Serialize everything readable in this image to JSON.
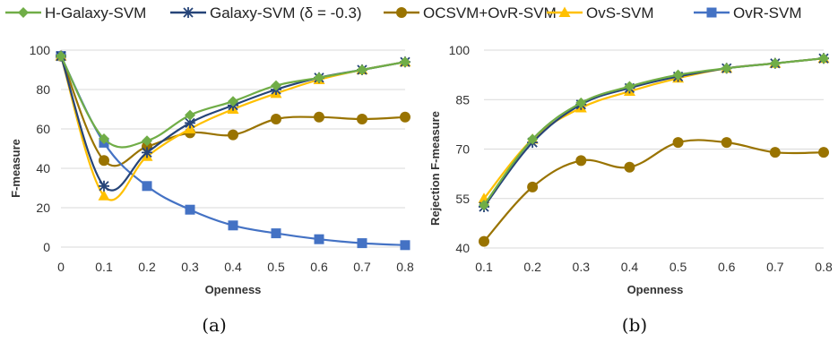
{
  "colors": {
    "H-Galaxy-SVM": "#70ad47",
    "Galaxy-SVM": "#264478",
    "OCSVM+OvR-SVM": "#997300",
    "OvS-SVM": "#ffc000",
    "OvR-SVM": "#4472c4",
    "grid": "#d9d9d9"
  },
  "legend": [
    {
      "name": "H-Galaxy-SVM",
      "marker": "diamond"
    },
    {
      "name": "Galaxy-SVM  (δ = -0.3)",
      "marker": "star"
    },
    {
      "name": "OCSVM+OvR-SVM",
      "marker": "circle"
    },
    {
      "name": "OvS-SVM",
      "marker": "triangle"
    },
    {
      "name": "OvR-SVM",
      "marker": "square"
    }
  ],
  "chart_data": [
    {
      "type": "line",
      "caption": "(a)",
      "xlabel": "Openness",
      "ylabel": "F-measure",
      "x": [
        0,
        0.1,
        0.2,
        0.3,
        0.4,
        0.5,
        0.6,
        0.7,
        0.8
      ],
      "x_ticks": [
        "0",
        "0.1",
        "0.2",
        "0.3",
        "0.4",
        "0.5",
        "0.6",
        "0.7",
        "0.8"
      ],
      "ylim": [
        0,
        100
      ],
      "y_ticks": [
        "0",
        "20",
        "40",
        "60",
        "80",
        "100"
      ],
      "grid": true,
      "series": [
        {
          "name": "OCSVM+OvR-SVM",
          "marker": "circle",
          "values": [
            97,
            44,
            51,
            58,
            57,
            65,
            66,
            65,
            66
          ]
        },
        {
          "name": "OvR-SVM",
          "marker": "square",
          "values": [
            97,
            53,
            31,
            19,
            11,
            7,
            4,
            2,
            1
          ]
        },
        {
          "name": "OvS-SVM",
          "marker": "triangle",
          "values": [
            97,
            26,
            46,
            60,
            70,
            78,
            85,
            90,
            94
          ]
        },
        {
          "name": "Galaxy-SVM  (δ = -0.3)",
          "marker": "star",
          "values": [
            97,
            31,
            48,
            63,
            72,
            80,
            86,
            90,
            94
          ]
        },
        {
          "name": "H-Galaxy-SVM",
          "marker": "diamond",
          "values": [
            97,
            55,
            54,
            67,
            74,
            82,
            86,
            90,
            94
          ]
        }
      ]
    },
    {
      "type": "line",
      "caption": "(b)",
      "xlabel": "Openness",
      "ylabel": "Rejection F-measure",
      "x": [
        0.1,
        0.2,
        0.3,
        0.4,
        0.5,
        0.6,
        0.7,
        0.8
      ],
      "x_ticks": [
        "0.1",
        "0.2",
        "0.3",
        "0.4",
        "0.5",
        "0.6",
        "0.7",
        "0.8"
      ],
      "ylim": [
        40,
        100
      ],
      "y_ticks": [
        "40",
        "55",
        "70",
        "85",
        "100"
      ],
      "grid": true,
      "series": [
        {
          "name": "OCSVM+OvR-SVM",
          "marker": "circle",
          "values": [
            42,
            58.5,
            66.5,
            64.5,
            72,
            72,
            69,
            69
          ]
        },
        {
          "name": "OvS-SVM",
          "marker": "triangle",
          "values": [
            55,
            73,
            82.5,
            87.5,
            91.5,
            94.5,
            96,
            97.5
          ]
        },
        {
          "name": "Galaxy-SVM  (δ = -0.3)",
          "marker": "star",
          "values": [
            52.5,
            72,
            83.5,
            88.5,
            92,
            94.5,
            96,
            97.5
          ]
        },
        {
          "name": "H-Galaxy-SVM",
          "marker": "diamond",
          "values": [
            53,
            73,
            84,
            89,
            92.5,
            94.5,
            96,
            97.5
          ]
        }
      ]
    }
  ]
}
